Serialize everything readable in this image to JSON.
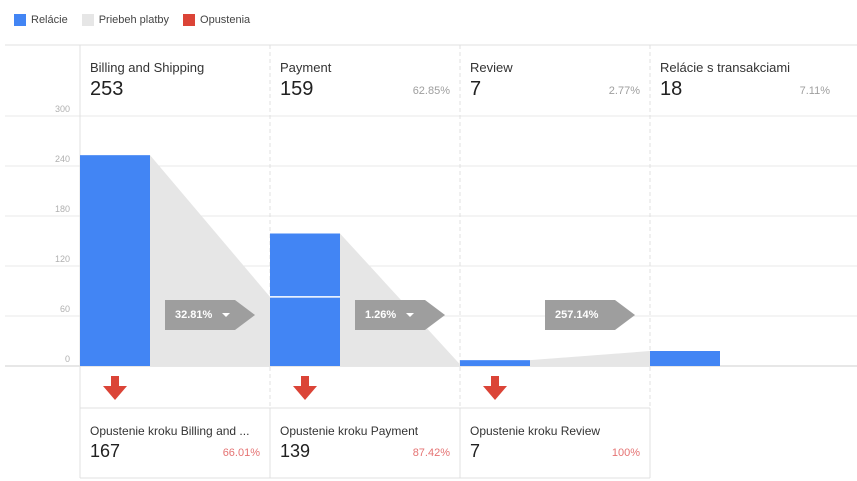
{
  "legend": [
    {
      "label": "Relácie",
      "color": "#4285f4"
    },
    {
      "label": "Priebeh platby",
      "color": "#e6e6e6"
    },
    {
      "label": "Opustenia",
      "color": "#db4437"
    }
  ],
  "chart_data": {
    "type": "bar",
    "ylim": [
      0,
      300
    ],
    "yticks": [
      0,
      60,
      120,
      180,
      240,
      300
    ],
    "stages": [
      {
        "name": "Billing and Shipping",
        "value": 253,
        "pct": "",
        "bar_split": null
      },
      {
        "name": "Payment",
        "value": 159,
        "pct": "62.85%",
        "bar_split": 83
      },
      {
        "name": "Review",
        "value": 7,
        "pct": "2.77%",
        "bar_split": null
      },
      {
        "name": "Relácie s transakciami",
        "value": 18,
        "pct": "7.11%",
        "bar_split": null
      }
    ],
    "flow_values": [
      83,
      2,
      18
    ],
    "conversion_rates": [
      "32.81%",
      "1.26%",
      "257.14%"
    ],
    "dropoffs": [
      {
        "name": "Opustenie kroku Billing and ...",
        "value": 167,
        "pct": "66.01%"
      },
      {
        "name": "Opustenie kroku Payment",
        "value": 139,
        "pct": "87.42%"
      },
      {
        "name": "Opustenie kroku Review",
        "value": 7,
        "pct": "100%"
      }
    ]
  }
}
